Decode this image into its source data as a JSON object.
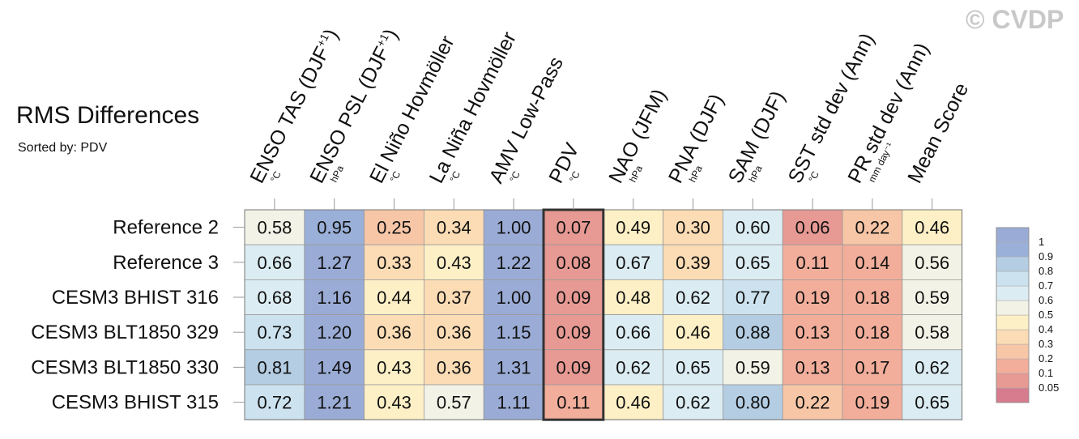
{
  "title": "RMS Differences",
  "subtitle": "Sorted by: PDV",
  "watermark": "© CVDP",
  "chart_data": {
    "type": "heatmap",
    "highlighted_column": "PDV",
    "columns": [
      {
        "name": "ENSO TAS (DJF",
        "sup": "+1",
        "close": ")",
        "unit": "°C"
      },
      {
        "name": "ENSO PSL (DJF",
        "sup": "+1",
        "close": ")",
        "unit": "hPa"
      },
      {
        "name": "El Niño Hovmöller",
        "sup": "",
        "close": "",
        "unit": "°C"
      },
      {
        "name": "La Niña Hovmöller",
        "sup": "",
        "close": "",
        "unit": "°C"
      },
      {
        "name": "AMV Low-Pass",
        "sup": "",
        "close": "",
        "unit": "°C"
      },
      {
        "name": "PDV",
        "sup": "",
        "close": "",
        "unit": "°C"
      },
      {
        "name": "NAO (JFM)",
        "sup": "",
        "close": "",
        "unit": "hPa"
      },
      {
        "name": "PNA (DJF)",
        "sup": "",
        "close": "",
        "unit": "hPa"
      },
      {
        "name": "SAM (DJF)",
        "sup": "",
        "close": "",
        "unit": "hPa"
      },
      {
        "name": "SST std dev (Ann)",
        "sup": "",
        "close": "",
        "unit": "°C"
      },
      {
        "name": "PR std dev (Ann)",
        "sup": "",
        "close": "",
        "unit": "mm day⁻¹"
      },
      {
        "name": "Mean Score",
        "sup": "",
        "close": "",
        "unit": ""
      }
    ],
    "rows": [
      {
        "label": "Reference 2",
        "values": [
          0.58,
          0.95,
          0.25,
          0.34,
          1.0,
          0.07,
          0.49,
          0.3,
          0.6,
          0.06,
          0.22,
          0.46
        ]
      },
      {
        "label": "Reference 3",
        "values": [
          0.66,
          1.27,
          0.33,
          0.43,
          1.22,
          0.08,
          0.67,
          0.39,
          0.65,
          0.11,
          0.14,
          0.56
        ]
      },
      {
        "label": "CESM3 BHIST 316",
        "values": [
          0.68,
          1.16,
          0.44,
          0.37,
          1.0,
          0.09,
          0.48,
          0.62,
          0.77,
          0.19,
          0.18,
          0.59
        ]
      },
      {
        "label": "CESM3 BLT1850 329",
        "values": [
          0.73,
          1.2,
          0.36,
          0.36,
          1.15,
          0.09,
          0.66,
          0.46,
          0.88,
          0.13,
          0.18,
          0.58
        ]
      },
      {
        "label": "CESM3 BLT1850 330",
        "values": [
          0.81,
          1.49,
          0.43,
          0.36,
          1.31,
          0.09,
          0.62,
          0.65,
          0.59,
          0.13,
          0.17,
          0.62
        ]
      },
      {
        "label": "CESM3 BHIST 315",
        "values": [
          0.72,
          1.21,
          0.43,
          0.57,
          1.11,
          0.11,
          0.46,
          0.62,
          0.8,
          0.22,
          0.19,
          0.65
        ]
      }
    ],
    "colorbar": {
      "levels": [
        0.05,
        0.1,
        0.2,
        0.3,
        0.4,
        0.5,
        0.6,
        0.7,
        0.8,
        0.9,
        1
      ],
      "labels": [
        "0.05",
        "0.1",
        "0.2",
        "0.3",
        "0.4",
        "0.5",
        "0.6",
        "0.7",
        "0.8",
        "0.9",
        "1"
      ],
      "colors": [
        "#d77b8e",
        "#e79993",
        "#f2ae9b",
        "#f7c6a6",
        "#fbdcb4",
        "#fdf0c6",
        "#f2f2e6",
        "#dcecf3",
        "#cce2ee",
        "#b4cde3",
        "#9ab0d8",
        "#9aacd6"
      ]
    }
  }
}
